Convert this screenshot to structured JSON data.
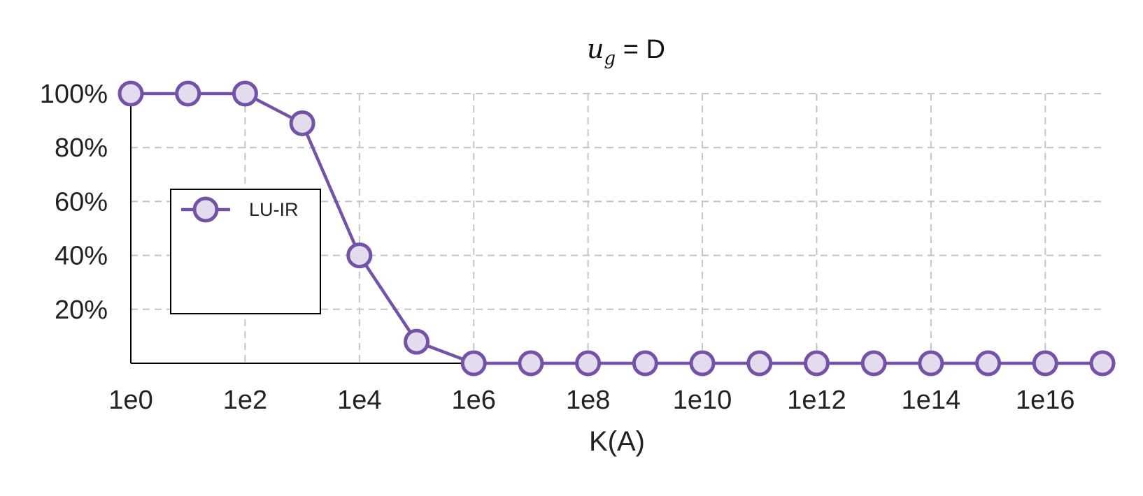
{
  "chart_data": {
    "type": "line",
    "title_var": "u",
    "title_sub": "g",
    "title_rest": " = D",
    "xlabel": "K(A)",
    "ylabel": "",
    "x_scale": "log10",
    "x": [
      "1e0",
      "1e1",
      "1e2",
      "1e3",
      "1e4",
      "1e5",
      "1e6",
      "1e7",
      "1e8",
      "1e9",
      "1e10",
      "1e11",
      "1e12",
      "1e13",
      "1e14",
      "1e15",
      "1e16",
      "1e17"
    ],
    "x_tick_labels": [
      "1e0",
      "1e2",
      "1e4",
      "1e6",
      "1e8",
      "1e10",
      "1e12",
      "1e14",
      "1e16"
    ],
    "y_tick_labels": [
      "20%",
      "40%",
      "60%",
      "80%",
      "100%"
    ],
    "xlim": [
      "1e0",
      "1e17"
    ],
    "ylim": [
      0,
      100
    ],
    "grid": true,
    "legend_position": "left-middle",
    "series": [
      {
        "name": "LU-IR",
        "color": "#7352a8",
        "marker_fill": "#e2dcee",
        "marker": "circle",
        "values": [
          100,
          100,
          100,
          89,
          40,
          8,
          0,
          0,
          0,
          0,
          0,
          0,
          0,
          0,
          0,
          0,
          0,
          0
        ]
      }
    ]
  }
}
